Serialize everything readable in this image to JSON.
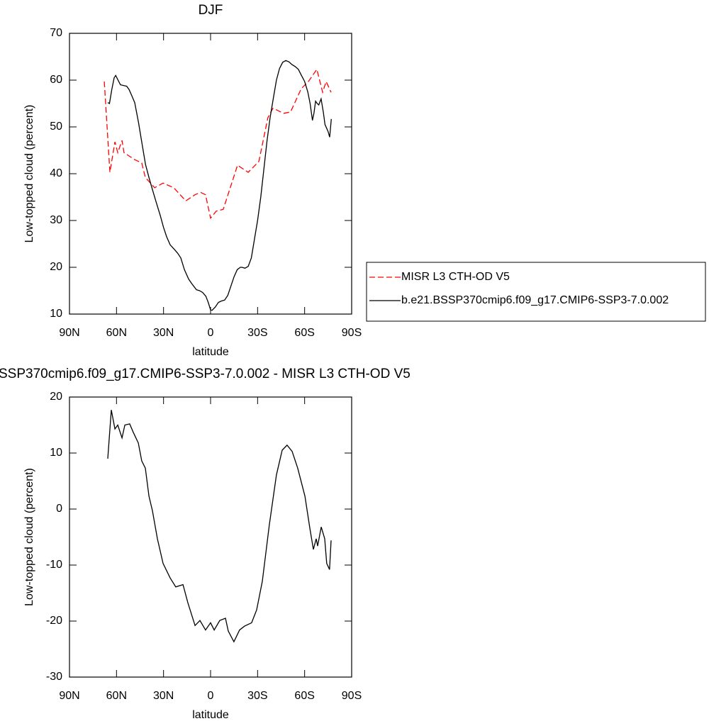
{
  "chart_data": [
    {
      "type": "line",
      "title": "DJF",
      "xlabel": "latitude",
      "ylabel": "Low-topped cloud (percent)",
      "xlim": [
        90,
        -90
      ],
      "xticks": [
        {
          "value": 90,
          "label": "90N"
        },
        {
          "value": 60,
          "label": "60N"
        },
        {
          "value": 30,
          "label": "30N"
        },
        0,
        {
          "value": -30,
          "label": "30S"
        },
        {
          "value": -60,
          "label": "60S"
        },
        {
          "value": -90,
          "label": "90S"
        }
      ],
      "ylim": [
        10,
        70
      ],
      "yticks": [
        10,
        20,
        30,
        40,
        50,
        60,
        70
      ],
      "legend": "right",
      "series": [
        {
          "name": "MISR L3 CTH-OD V5",
          "color": "#ff0000",
          "dashed": true,
          "x": [
            67.8,
            64.2,
            61,
            59.2,
            56.5,
            55.2,
            48.4,
            43.9,
            41.6,
            35.7,
            30.3,
            23.5,
            15.8,
            10,
            6.3,
            3.2,
            0,
            -3.6,
            -8.1,
            -17.2,
            -24,
            -30.8,
            -36.6,
            -39.8,
            -46.6,
            -51,
            -57.9,
            -62.4,
            -67.8,
            -71.5,
            -73.7,
            -76.9
          ],
          "values": [
            59.7,
            40.3,
            46.8,
            44.5,
            47.1,
            44.5,
            43,
            42.3,
            39.2,
            37,
            38,
            37,
            34.2,
            35.5,
            36,
            35.5,
            30.5,
            32,
            32.4,
            41.8,
            40.3,
            42.6,
            52,
            54,
            52.9,
            53.2,
            58.2,
            59.7,
            62.3,
            57.4,
            59.7,
            57.4
          ]
        },
        {
          "name": "b.e21.BSSP370cmip6.f09_g17.CMIP6-SSP3-7.0.002",
          "color": "#000000",
          "dashed": false,
          "x": [
            65.6,
            64.5,
            63,
            61.5,
            60.5,
            59,
            57.5,
            55,
            53.5,
            52,
            50,
            48.4,
            46,
            43.9,
            41.5,
            39.3,
            37,
            34.8,
            32,
            30,
            28,
            25.8,
            23,
            21,
            19,
            16.7,
            14,
            12,
            9,
            7,
            5,
            3,
            1.5,
            0,
            -1,
            -3,
            -5,
            -7,
            -9,
            -11,
            -13,
            -15,
            -17,
            -19,
            -20,
            -22,
            -24,
            -26,
            -28,
            -30,
            -32,
            -34,
            -36,
            -38,
            -40,
            -42,
            -44,
            -46,
            -48,
            -50,
            -52,
            -54,
            -56,
            -58,
            -60,
            -62,
            -63.5,
            -65,
            -66,
            -67,
            -68,
            -69,
            -70.5,
            -72,
            -73,
            -75,
            -76,
            -77
          ],
          "values": [
            55.2,
            55,
            58,
            60.5,
            61,
            60,
            59,
            58.8,
            58.7,
            58,
            56.5,
            55.2,
            51,
            46.8,
            42,
            39.2,
            36.5,
            34,
            31,
            28.5,
            26.5,
            24.8,
            23.8,
            23,
            22,
            19.5,
            17.5,
            16.5,
            15.2,
            15,
            14.6,
            13.8,
            12.5,
            10.9,
            10.8,
            11.5,
            12.5,
            12.8,
            13,
            14,
            16,
            18,
            19.5,
            20,
            20,
            19.8,
            20.2,
            22,
            26,
            30,
            35,
            41,
            47,
            52,
            56,
            60,
            62.5,
            63.8,
            64.2,
            63.9,
            63.3,
            62.9,
            62.3,
            61,
            59.7,
            57.5,
            55,
            51.4,
            53,
            55.5,
            55,
            54.7,
            56,
            53,
            50.5,
            49,
            47.8,
            51.7
          ]
        }
      ]
    },
    {
      "type": "line",
      "title": "SSP370cmip6.f09_g17.CMIP6-SSP3-7.0.002 - MISR L3 CTH-OD V5",
      "xlabel": "latitude",
      "ylabel": "Low-topped cloud (percent)",
      "xlim": [
        90,
        -90
      ],
      "xticks": [
        {
          "value": 90,
          "label": "90N"
        },
        {
          "value": 60,
          "label": "60N"
        },
        {
          "value": 30,
          "label": "30N"
        },
        0,
        {
          "value": -30,
          "label": "30S"
        },
        {
          "value": -60,
          "label": "60S"
        },
        {
          "value": -90,
          "label": "90S"
        }
      ],
      "ylim": [
        -30,
        20
      ],
      "yticks": [
        -30,
        -20,
        -10,
        0,
        10,
        20
      ],
      "series": [
        {
          "color": "#000000",
          "dashed": false,
          "x": [
            65.6,
            63.3,
            61,
            59.2,
            56.5,
            54.7,
            51.6,
            49.3,
            46.1,
            43.9,
            41.6,
            39.3,
            37.1,
            33.9,
            30.3,
            25.8,
            22.2,
            17.6,
            14.5,
            9.9,
            6.8,
            3.2,
            0,
            -2.3,
            -5.9,
            -9.5,
            -11.3,
            -14.9,
            -18.5,
            -21.7,
            -26.2,
            -29.4,
            -33,
            -37.5,
            -42,
            -45.7,
            -48.8,
            -52,
            -55.6,
            -60.2,
            -63.3,
            -65.6,
            -67.4,
            -68.3,
            -70.6,
            -72.8,
            -74.1,
            -75.9,
            -76.9
          ],
          "values": [
            9,
            17.7,
            14.3,
            15,
            12.7,
            15,
            15.2,
            13.7,
            11.8,
            8.6,
            7.3,
            2.3,
            -0.3,
            -5.3,
            -9.7,
            -12.3,
            -13.9,
            -13.5,
            -16.7,
            -20.8,
            -19.9,
            -21.6,
            -20.3,
            -21.6,
            -19.9,
            -19.5,
            -21.8,
            -23.7,
            -21.6,
            -20.9,
            -20.3,
            -18,
            -12.9,
            -2.8,
            6.1,
            10.5,
            11.4,
            10.3,
            7.3,
            2.3,
            -3.4,
            -7.2,
            -5.3,
            -6.6,
            -3.2,
            -5.3,
            -9.7,
            -10.8,
            -5.6
          ]
        }
      ]
    }
  ]
}
